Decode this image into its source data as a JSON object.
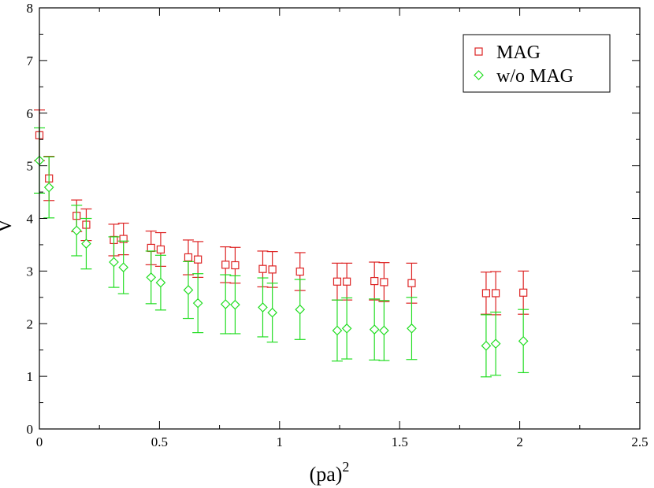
{
  "chart_data": {
    "type": "scatter",
    "title": "",
    "xlabel": "(pa)",
    "xlabel_superscript": "2",
    "ylabel": "V",
    "xlim": [
      0,
      2.5
    ],
    "ylim": [
      0,
      8
    ],
    "xticks": [
      0,
      0.5,
      1,
      1.5,
      2,
      2.5
    ],
    "xtick_labels": [
      "0",
      "0.5",
      "1",
      "1.5",
      "2",
      "2.5"
    ],
    "yticks": [
      0,
      1,
      2,
      3,
      4,
      5,
      6,
      7,
      8
    ],
    "ytick_labels": [
      "0",
      "1",
      "2",
      "3",
      "4",
      "5",
      "6",
      "7",
      "8"
    ],
    "legend_position": "top-right",
    "series": [
      {
        "name": "MAG",
        "marker": "square",
        "color": "#dd2222",
        "x": [
          0.0,
          0.04,
          0.155,
          0.195,
          0.31,
          0.35,
          0.465,
          0.505,
          0.62,
          0.66,
          0.775,
          0.815,
          0.93,
          0.97,
          1.085,
          1.24,
          1.28,
          1.395,
          1.435,
          1.55,
          1.86,
          1.9,
          2.015
        ],
        "y": [
          5.58,
          4.76,
          4.05,
          3.88,
          3.59,
          3.61,
          3.44,
          3.41,
          3.26,
          3.22,
          3.12,
          3.11,
          3.04,
          3.03,
          2.99,
          2.8,
          2.8,
          2.81,
          2.79,
          2.77,
          2.58,
          2.58,
          2.59
        ],
        "err": [
          0.48,
          0.42,
          0.3,
          0.3,
          0.3,
          0.3,
          0.32,
          0.32,
          0.33,
          0.34,
          0.34,
          0.34,
          0.34,
          0.34,
          0.36,
          0.35,
          0.35,
          0.36,
          0.37,
          0.38,
          0.4,
          0.41,
          0.41
        ]
      },
      {
        "name": "w/o MAG",
        "marker": "diamond",
        "color": "#22dd22",
        "x": [
          0.0,
          0.04,
          0.155,
          0.195,
          0.31,
          0.35,
          0.465,
          0.505,
          0.62,
          0.66,
          0.775,
          0.815,
          0.93,
          0.97,
          1.085,
          1.24,
          1.28,
          1.395,
          1.435,
          1.55,
          1.86,
          1.9,
          2.015
        ],
        "y": [
          5.1,
          4.59,
          3.77,
          3.52,
          3.17,
          3.07,
          2.88,
          2.78,
          2.64,
          2.39,
          2.37,
          2.36,
          2.31,
          2.21,
          2.27,
          1.87,
          1.91,
          1.89,
          1.87,
          1.91,
          1.58,
          1.62,
          1.67
        ],
        "err": [
          0.62,
          0.58,
          0.48,
          0.48,
          0.48,
          0.5,
          0.5,
          0.52,
          0.54,
          0.56,
          0.56,
          0.55,
          0.56,
          0.56,
          0.57,
          0.58,
          0.58,
          0.58,
          0.57,
          0.59,
          0.59,
          0.6,
          0.6
        ]
      }
    ]
  }
}
